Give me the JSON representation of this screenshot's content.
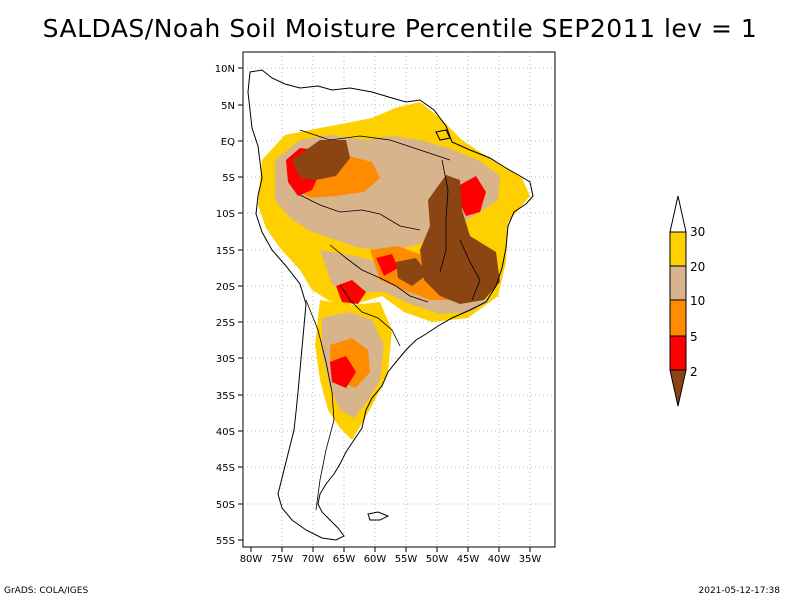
{
  "title": "SALDAS/Noah Soil Moisture Percentile SEP2011 lev = 1",
  "footer_left": "GrADS: COLA/IGES",
  "footer_right": "2021-05-12-17:38",
  "lat_ticks": [
    "10N",
    "5N",
    "EQ",
    "5S",
    "10S",
    "15S",
    "20S",
    "25S",
    "30S",
    "35S",
    "40S",
    "45S",
    "50S",
    "55S"
  ],
  "lon_ticks": [
    "80W",
    "75W",
    "70W",
    "65W",
    "60W",
    "55W",
    "50W",
    "45W",
    "40W",
    "35W"
  ],
  "colorbar": {
    "labels": [
      "30",
      "20",
      "10",
      "5",
      "2"
    ],
    "colors": {
      "above_30": "#ffffff",
      "20_30": "#ffd000",
      "10_20": "#d8b48c",
      "5_10": "#ff8c00",
      "2_5": "#ff0000",
      "below_2": "#8b4513"
    }
  },
  "colors": {
    "yellow": "#ffd000",
    "tan": "#d8b48c",
    "orange": "#ff8c00",
    "red": "#ff0000",
    "brown": "#8b4513",
    "grid": "#aaaaaa",
    "coast": "#000000"
  }
}
